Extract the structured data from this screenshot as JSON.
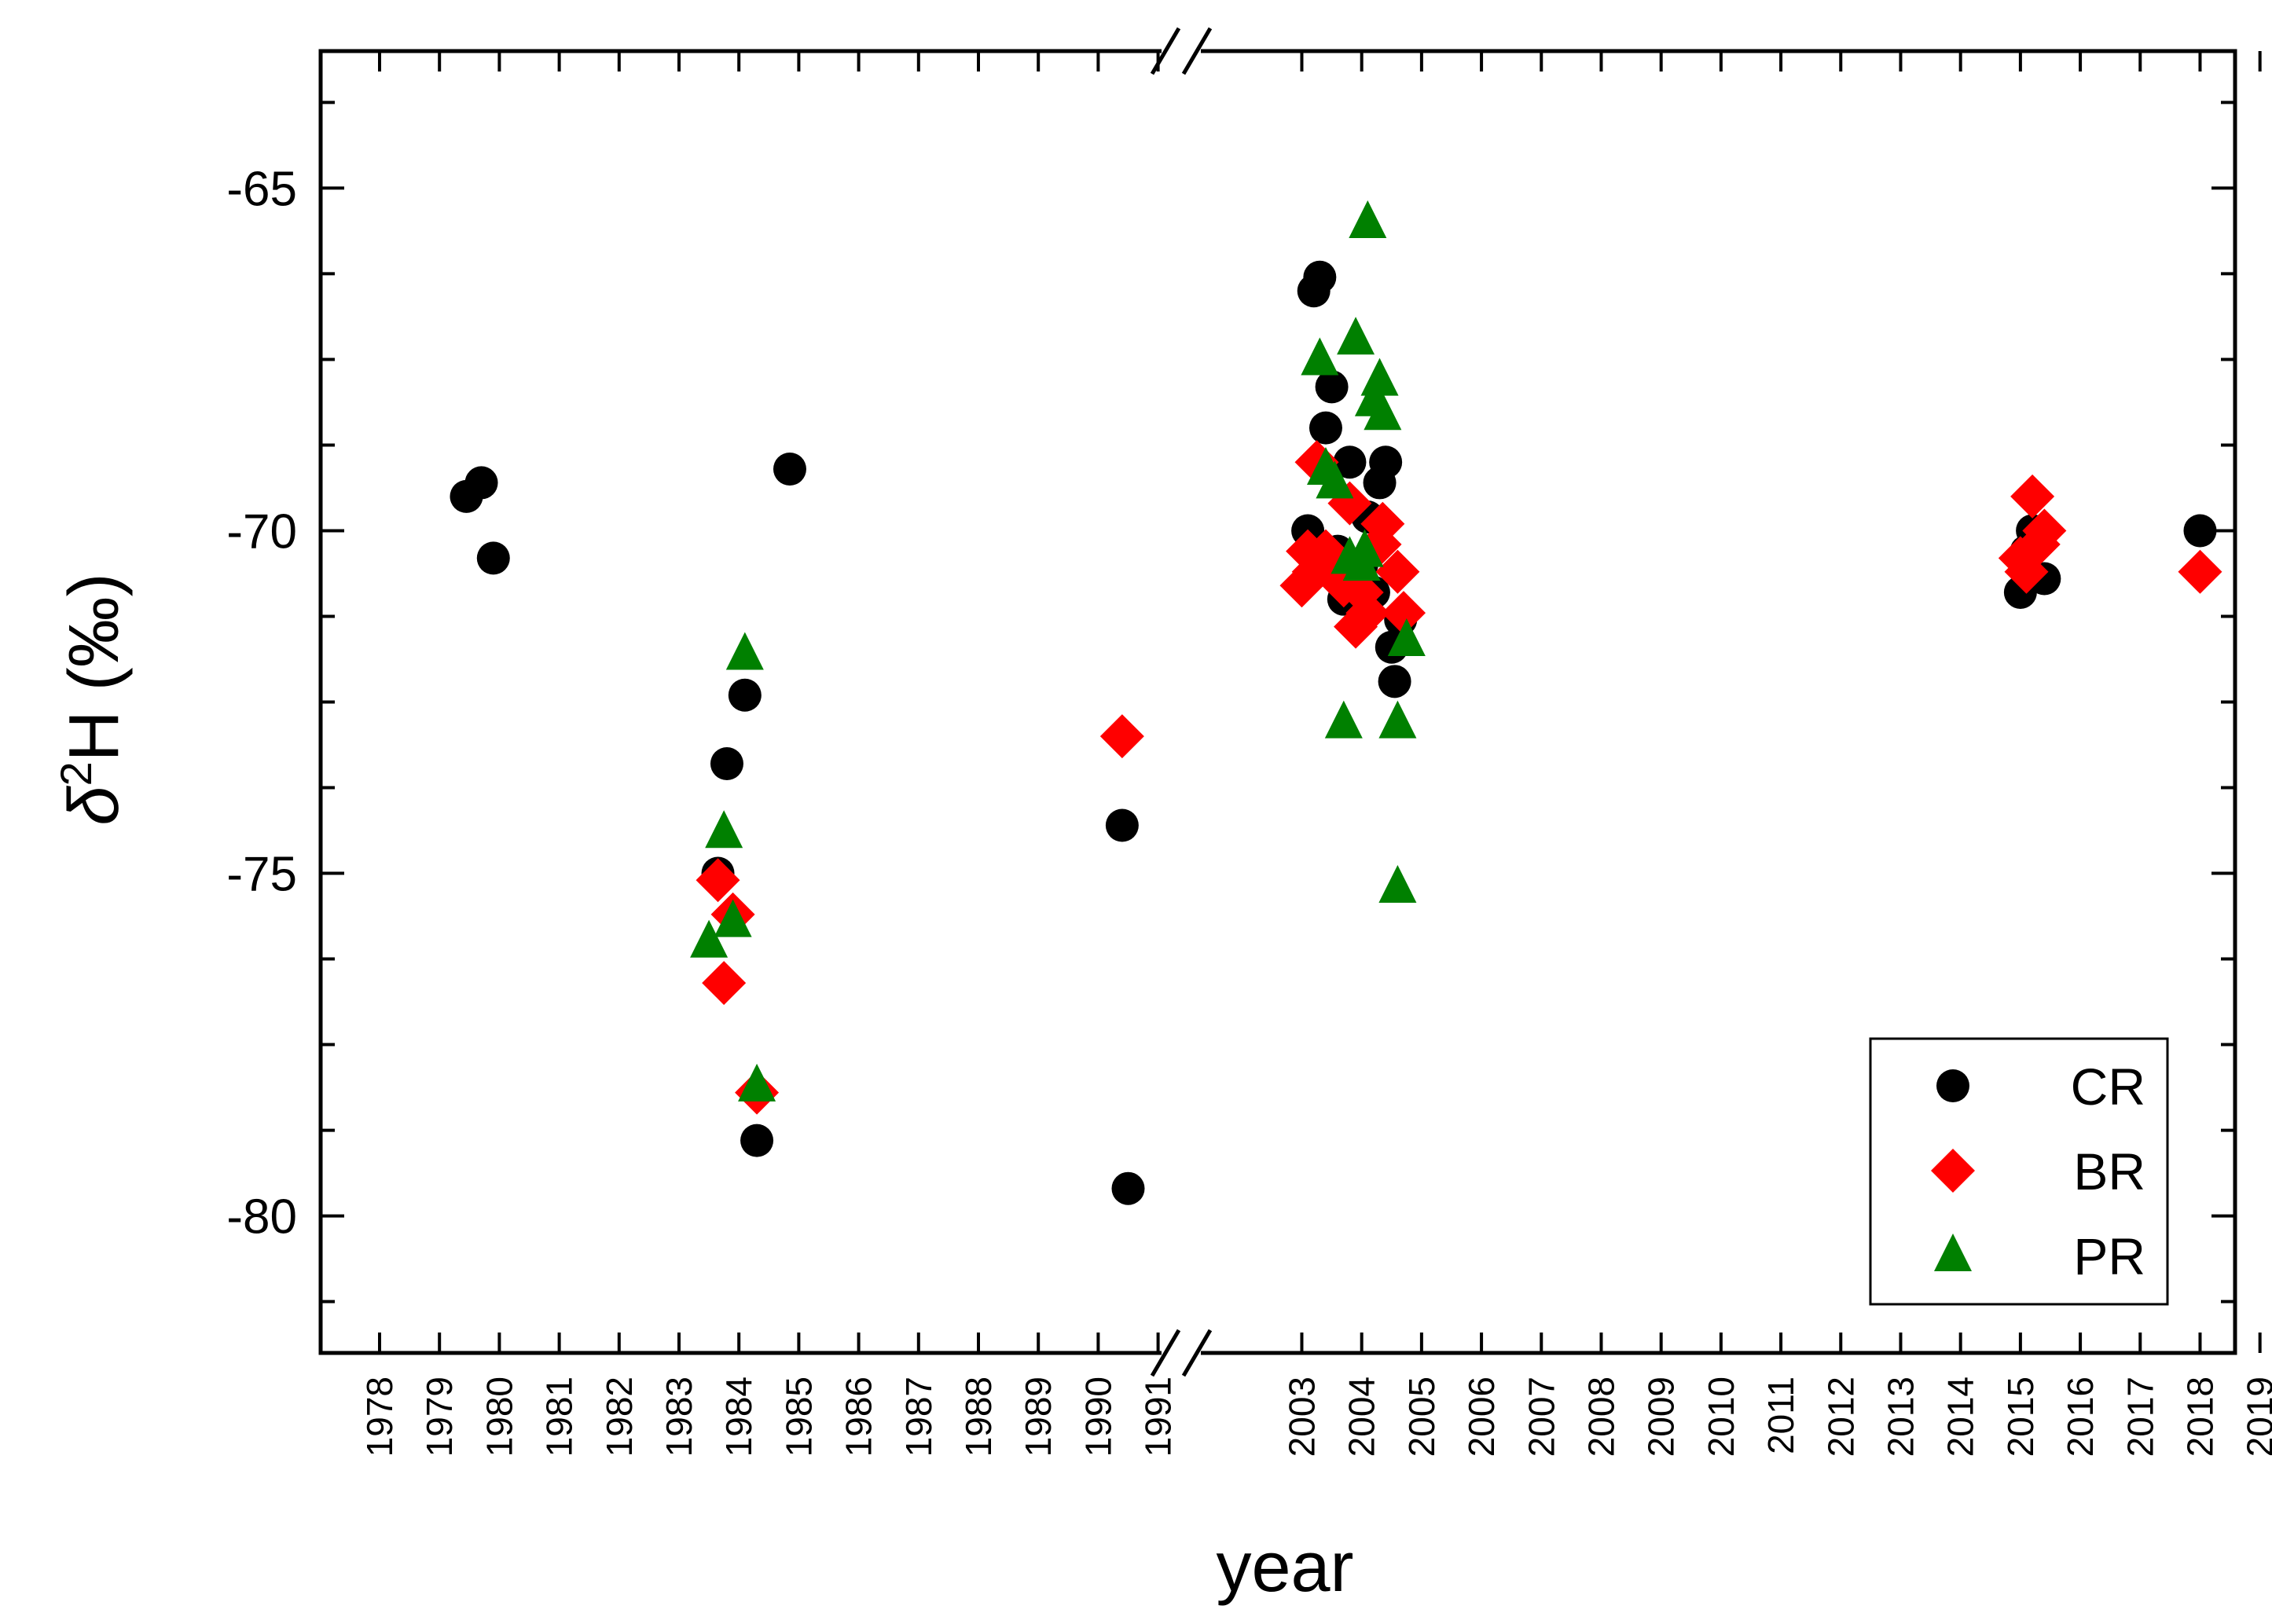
{
  "chart_data": {
    "type": "scatter",
    "xlabel": "year",
    "ylabel": {
      "symbol": "δ",
      "sup": "2",
      "rest": "H (‰)"
    },
    "ylim": [
      -82,
      -63
    ],
    "y_ticks": [
      -65,
      -70,
      -75,
      -80
    ],
    "y_tick_labels": [
      "-65",
      "-70",
      "-75",
      "-80"
    ],
    "x_axis_break": true,
    "x_segments": [
      {
        "start": 1978,
        "end": 1991
      },
      {
        "start": 2003,
        "end": 2019
      }
    ],
    "x_tick_labels": [
      "1978",
      "1979",
      "1980",
      "1981",
      "1982",
      "1983",
      "1984",
      "1985",
      "1986",
      "1987",
      "1988",
      "1989",
      "1990",
      "1991",
      "2003",
      "2004",
      "2005",
      "2006",
      "2007",
      "2008",
      "2009",
      "2010",
      "2011",
      "2012",
      "2013",
      "2014",
      "2015",
      "2016",
      "2017",
      "2018",
      "2019"
    ],
    "grid": false,
    "legend": "bottom-right",
    "series": [
      {
        "name": "CR",
        "marker": "circle",
        "color": "#000000",
        "points": [
          [
            1979.45,
            -69.5
          ],
          [
            1979.7,
            -69.3
          ],
          [
            1979.9,
            -70.4
          ],
          [
            1984.85,
            -69.1
          ],
          [
            1983.65,
            -75.0
          ],
          [
            1983.8,
            -73.4
          ],
          [
            1984.1,
            -72.4
          ],
          [
            1984.3,
            -78.9
          ],
          [
            1990.4,
            -74.3
          ],
          [
            1990.5,
            -79.6
          ],
          [
            2003.1,
            -70.0
          ],
          [
            2003.2,
            -66.5
          ],
          [
            2003.3,
            -66.3
          ],
          [
            2003.4,
            -68.5
          ],
          [
            2003.5,
            -67.9
          ],
          [
            2003.8,
            -69.0
          ],
          [
            2003.7,
            -71.0
          ],
          [
            2003.6,
            -70.3
          ],
          [
            2004.0,
            -70.5
          ],
          [
            2004.1,
            -69.8
          ],
          [
            2004.3,
            -69.3
          ],
          [
            2004.4,
            -69.0
          ],
          [
            2004.5,
            -71.7
          ],
          [
            2004.55,
            -72.2
          ],
          [
            2004.65,
            -71.3
          ],
          [
            2004.2,
            -70.9
          ],
          [
            2015.0,
            -70.9
          ],
          [
            2015.1,
            -70.3
          ],
          [
            2015.2,
            -70.0
          ],
          [
            2015.4,
            -70.7
          ],
          [
            2018.0,
            -70.0
          ]
        ]
      },
      {
        "name": "BR",
        "marker": "diamond",
        "color": "#ff0000",
        "points": [
          [
            1983.65,
            -75.1
          ],
          [
            1983.75,
            -76.6
          ],
          [
            1983.9,
            -75.6
          ],
          [
            1984.3,
            -78.2
          ],
          [
            1990.4,
            -73.0
          ],
          [
            2003.0,
            -70.8
          ],
          [
            2003.1,
            -70.3
          ],
          [
            2003.2,
            -70.6
          ],
          [
            2003.25,
            -69.0
          ],
          [
            2003.4,
            -70.3
          ],
          [
            2003.5,
            -70.5
          ],
          [
            2003.8,
            -69.6
          ],
          [
            2003.7,
            -70.8
          ],
          [
            2003.9,
            -71.4
          ],
          [
            2004.0,
            -70.9
          ],
          [
            2004.1,
            -71.2
          ],
          [
            2004.3,
            -70.2
          ],
          [
            2004.35,
            -69.9
          ],
          [
            2004.6,
            -70.6
          ],
          [
            2004.7,
            -71.2
          ],
          [
            2015.0,
            -70.4
          ],
          [
            2015.1,
            -70.6
          ],
          [
            2015.2,
            -69.5
          ],
          [
            2015.3,
            -70.2
          ],
          [
            2015.4,
            -70.0
          ],
          [
            2018.0,
            -70.6
          ]
        ]
      },
      {
        "name": "PR",
        "marker": "triangle",
        "color": "#008000",
        "points": [
          [
            1983.5,
            -76.0
          ],
          [
            1983.75,
            -74.4
          ],
          [
            1983.9,
            -75.7
          ],
          [
            1984.1,
            -71.8
          ],
          [
            1984.3,
            -78.1
          ],
          [
            2003.3,
            -67.5
          ],
          [
            2003.4,
            -69.1
          ],
          [
            2003.55,
            -69.3
          ],
          [
            2003.7,
            -72.8
          ],
          [
            2003.8,
            -70.4
          ],
          [
            2003.9,
            -67.2
          ],
          [
            2004.0,
            -70.5
          ],
          [
            2004.05,
            -70.3
          ],
          [
            2004.1,
            -65.5
          ],
          [
            2004.2,
            -68.1
          ],
          [
            2004.3,
            -67.8
          ],
          [
            2004.35,
            -68.3
          ],
          [
            2004.6,
            -72.8
          ],
          [
            2004.6,
            -75.2
          ],
          [
            2004.75,
            -71.6
          ]
        ]
      }
    ]
  }
}
